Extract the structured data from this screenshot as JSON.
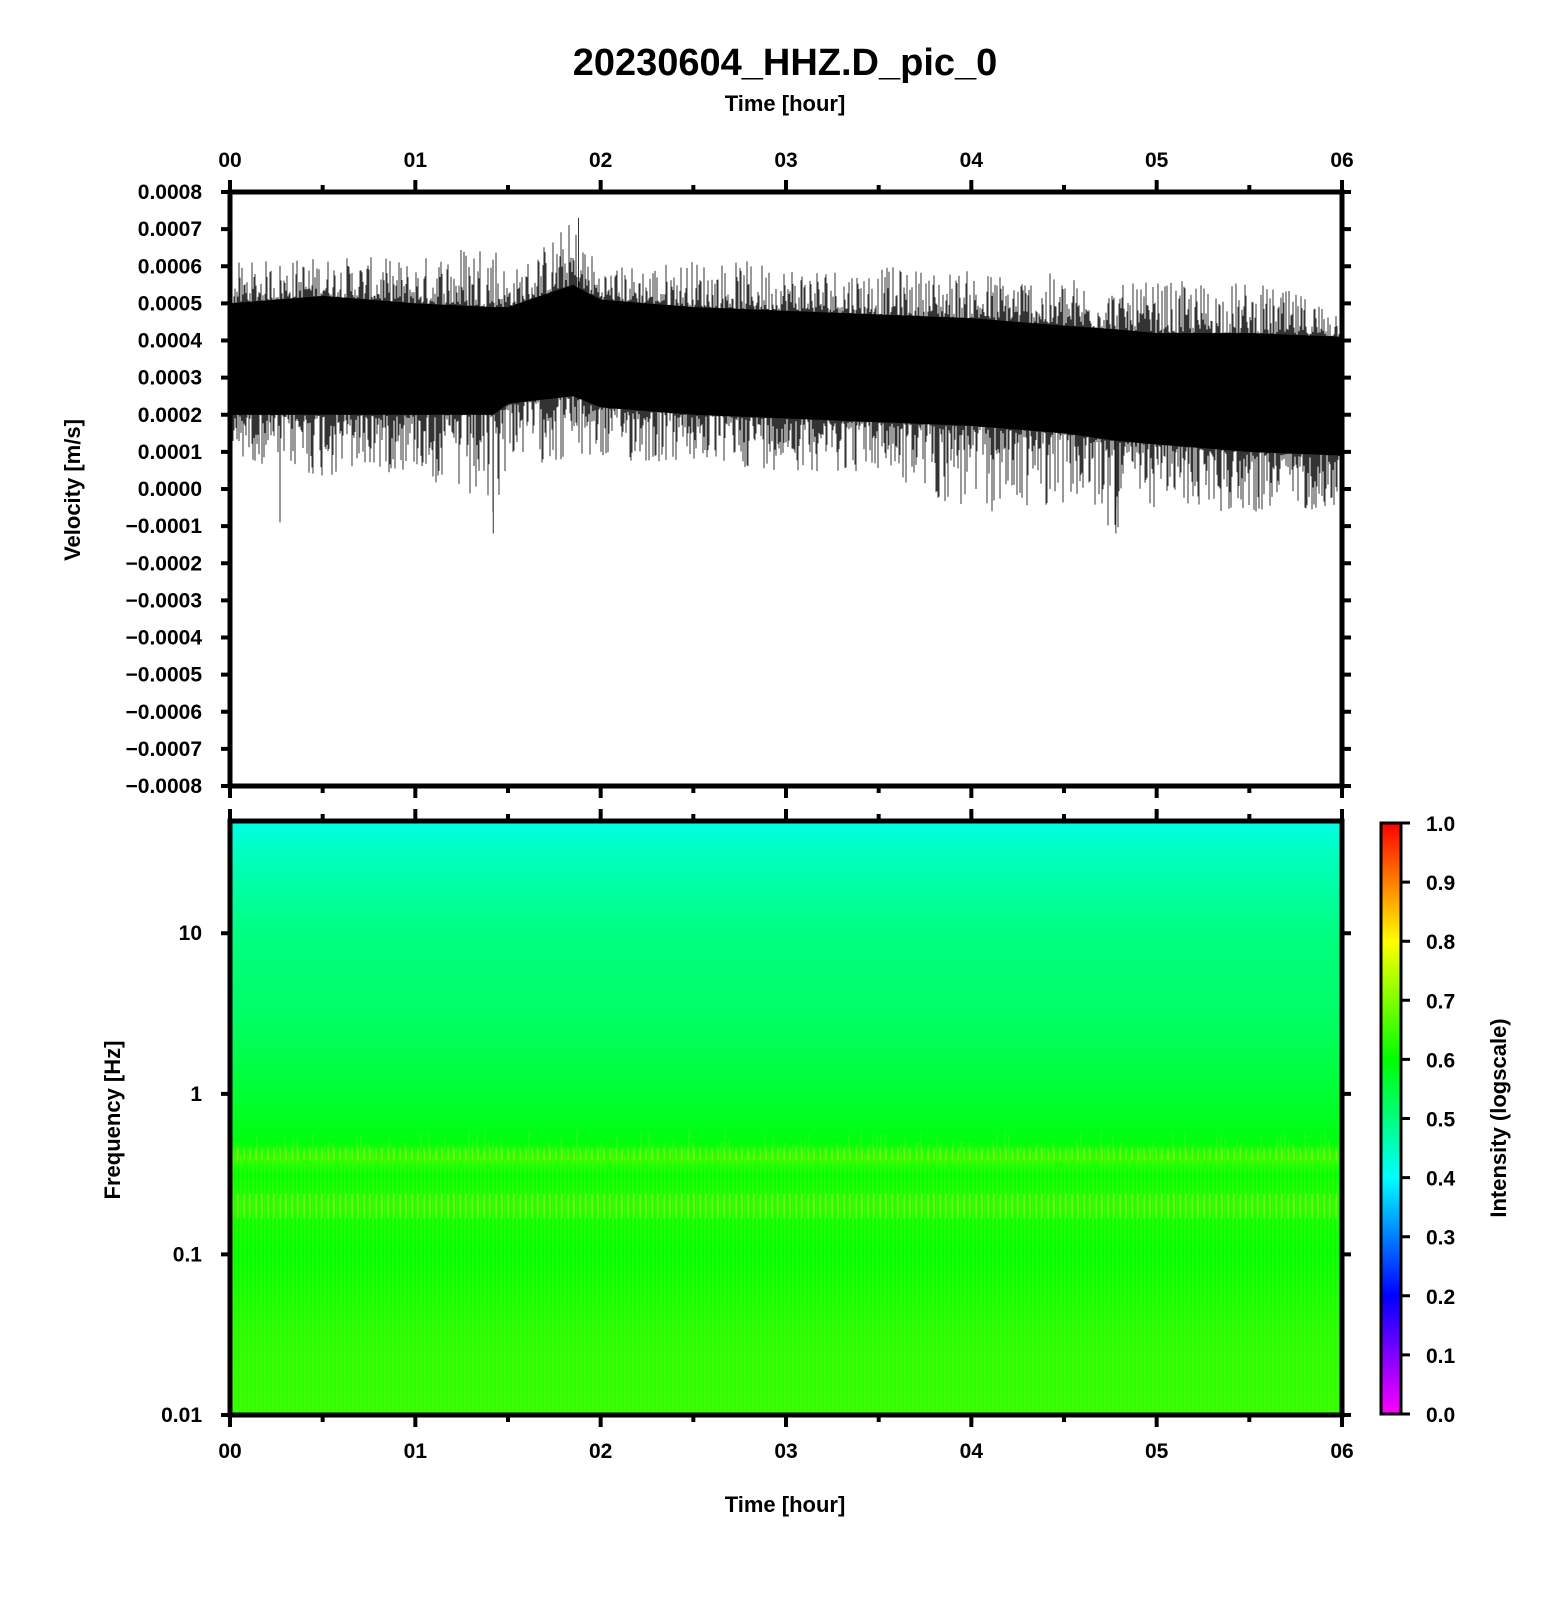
{
  "figure": {
    "title": "20230604_HHZ.D_pic_0"
  },
  "chart_data": [
    {
      "type": "line",
      "name": "waveform",
      "top_xlabel": "Time [hour]",
      "xlabel": "",
      "ylabel": "Velocity [m/s]",
      "x_ticks": [
        "00",
        "01",
        "02",
        "03",
        "04",
        "05",
        "06"
      ],
      "xlim": [
        0,
        6
      ],
      "ylim": [
        -0.0008,
        0.0008
      ],
      "y_ticks": [
        "0.0008",
        "0.0007",
        "0.0006",
        "0.0005",
        "0.0004",
        "0.0003",
        "0.0002",
        "0.0001",
        "0.0000",
        "−0.0001",
        "−0.0002",
        "−0.0003",
        "−0.0004",
        "−0.0005",
        "−0.0006",
        "−0.0007",
        "−0.0008"
      ],
      "envelope": {
        "hours": [
          0.0,
          0.5,
          1.0,
          1.42,
          1.5,
          1.85,
          2.0,
          2.5,
          3.0,
          3.5,
          4.0,
          4.5,
          4.78,
          5.0,
          5.5,
          6.0
        ],
        "max": [
          0.00061,
          0.00063,
          0.00062,
          0.0007,
          0.00058,
          0.00073,
          0.0006,
          0.00062,
          0.00061,
          0.0006,
          0.00059,
          0.00058,
          0.00055,
          0.00056,
          0.00056,
          0.0005
        ],
        "upper": [
          0.0005,
          0.00052,
          0.0005,
          0.00049,
          0.00049,
          0.00055,
          0.00051,
          0.00049,
          0.00048,
          0.00047,
          0.00046,
          0.00044,
          0.00043,
          0.00042,
          0.00042,
          0.00041
        ],
        "lower": [
          0.0002,
          0.0002,
          0.0002,
          0.0002,
          0.00023,
          0.00025,
          0.00022,
          0.0002,
          0.00019,
          0.00018,
          0.00017,
          0.00015,
          0.00013,
          0.00012,
          0.0001,
          9e-05
        ],
        "min": [
          9e-05,
          2e-05,
          5e-05,
          -0.00012,
          8e-05,
          6e-05,
          7e-05,
          6e-05,
          5e-05,
          4e-05,
          -8e-05,
          -4e-05,
          -0.00012,
          -5e-05,
          -7e-05,
          -5e-05
        ]
      },
      "spikes": [
        {
          "hour": 0.27,
          "min": -9e-05
        },
        {
          "hour": 1.42,
          "min": -0.00012
        },
        {
          "hour": 1.88,
          "max": 0.00073
        },
        {
          "hour": 4.78,
          "min": -0.00012
        }
      ]
    },
    {
      "type": "heatmap",
      "name": "spectrogram",
      "xlabel": "Time [hour]",
      "ylabel": "Frequency [Hz]",
      "x_ticks": [
        "00",
        "01",
        "02",
        "03",
        "04",
        "05",
        "06"
      ],
      "xlim": [
        0,
        6
      ],
      "y_scale": "log",
      "ylim": [
        0.01,
        50
      ],
      "y_ticks": [
        "10",
        "1",
        "0.1",
        "0.01"
      ],
      "intensity_profile": {
        "log10_freq": [
          -2.0,
          -1.5,
          -1.0,
          -0.8,
          -0.7,
          -0.5,
          -0.4,
          -0.3,
          0.0,
          0.5,
          1.0,
          1.5,
          1.7
        ],
        "intensity": [
          0.64,
          0.63,
          0.6,
          0.61,
          0.63,
          0.6,
          0.64,
          0.59,
          0.56,
          0.52,
          0.5,
          0.45,
          0.42
        ]
      },
      "colorbar": {
        "label": "Intensity (logscale)",
        "range": [
          0.0,
          1.0
        ],
        "ticks": [
          "1.0",
          "0.9",
          "0.8",
          "0.7",
          "0.6",
          "0.5",
          "0.4",
          "0.3",
          "0.2",
          "0.1",
          "0.0"
        ],
        "colors": [
          "#ff00ff",
          "#0000ff",
          "#00ffff",
          "#00ff00",
          "#ffff00",
          "#ff0000"
        ]
      }
    }
  ]
}
